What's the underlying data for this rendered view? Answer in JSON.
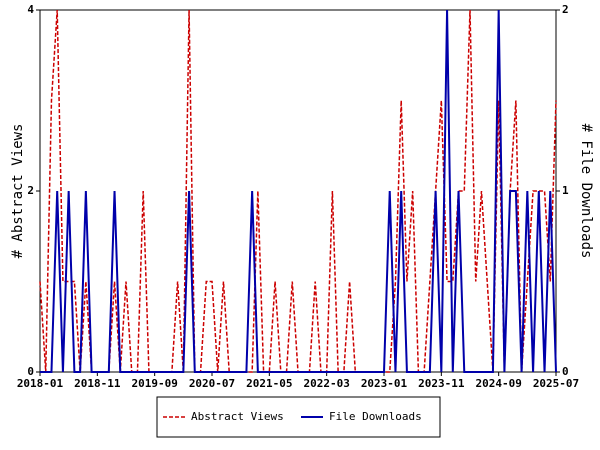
{
  "chart_data": {
    "type": "line",
    "x": [
      "2018-01",
      "2018-02",
      "2018-03",
      "2018-04",
      "2018-05",
      "2018-06",
      "2018-07",
      "2018-08",
      "2018-09",
      "2018-10",
      "2018-11",
      "2018-12",
      "2019-01",
      "2019-02",
      "2019-03",
      "2019-04",
      "2019-05",
      "2019-06",
      "2019-07",
      "2019-08",
      "2019-09",
      "2019-10",
      "2019-11",
      "2019-12",
      "2020-01",
      "2020-02",
      "2020-03",
      "2020-04",
      "2020-05",
      "2020-06",
      "2020-07",
      "2020-08",
      "2020-09",
      "2020-10",
      "2020-11",
      "2020-12",
      "2021-01",
      "2021-02",
      "2021-03",
      "2021-04",
      "2021-05",
      "2021-06",
      "2021-07",
      "2021-08",
      "2021-09",
      "2021-10",
      "2021-11",
      "2021-12",
      "2022-01",
      "2022-02",
      "2022-03",
      "2022-04",
      "2022-05",
      "2022-06",
      "2022-07",
      "2022-08",
      "2022-09",
      "2022-10",
      "2022-11",
      "2022-12",
      "2023-01",
      "2023-02",
      "2023-03",
      "2023-04",
      "2023-05",
      "2023-06",
      "2023-07",
      "2023-08",
      "2023-09",
      "2023-10",
      "2023-11",
      "2023-12",
      "2024-01",
      "2024-02",
      "2024-03",
      "2024-04",
      "2024-05",
      "2024-06",
      "2024-07",
      "2024-08",
      "2024-09",
      "2024-10",
      "2024-11",
      "2024-12",
      "2025-01",
      "2025-02",
      "2025-03",
      "2025-04",
      "2025-05",
      "2025-06",
      "2025-07"
    ],
    "xticks": [
      "2018-01",
      "2018-11",
      "2019-09",
      "2020-07",
      "2021-05",
      "2022-03",
      "2023-01",
      "2023-11",
      "2024-09",
      "2025-07"
    ],
    "ylabel": "# Abstract Views",
    "y2label": "# File Downloads",
    "ylim": [
      0,
      4
    ],
    "yticks": [
      0,
      2,
      4
    ],
    "y2lim": [
      0,
      2
    ],
    "y2ticks": [
      0,
      1,
      2
    ],
    "legend": "bottom",
    "series": [
      {
        "name": "Abstract Views",
        "color": "#cc0000",
        "dash": true,
        "values": [
          1,
          0,
          3,
          4,
          1,
          1,
          1,
          0,
          1,
          0,
          0,
          0,
          0,
          1,
          0,
          1,
          0,
          0,
          2,
          0,
          0,
          0,
          0,
          0,
          1,
          0,
          4,
          0,
          0,
          1,
          1,
          0,
          1,
          0,
          0,
          0,
          0,
          0,
          2,
          0,
          0,
          1,
          0,
          0,
          1,
          0,
          0,
          0,
          1,
          0,
          0,
          2,
          0,
          0,
          1,
          0,
          0,
          0,
          0,
          0,
          0,
          0,
          1,
          3,
          1,
          2,
          0,
          0,
          1,
          2,
          3,
          1,
          1,
          2,
          2,
          4,
          1,
          2,
          1,
          0,
          3,
          0,
          2,
          3,
          0,
          1,
          2,
          2,
          2,
          1,
          3
        ]
      },
      {
        "name": "File Downloads",
        "color": "#0000aa",
        "dash": false,
        "axis": "y2",
        "values": [
          0,
          0,
          0,
          1,
          0,
          1,
          0,
          0,
          1,
          0,
          0,
          0,
          0,
          1,
          0,
          0,
          0,
          0,
          0,
          0,
          0,
          0,
          0,
          0,
          0,
          0,
          1,
          0,
          0,
          0,
          0,
          0,
          0,
          0,
          0,
          0,
          0,
          1,
          0,
          0,
          0,
          0,
          0,
          0,
          0,
          0,
          0,
          0,
          0,
          0,
          0,
          0,
          0,
          0,
          0,
          0,
          0,
          0,
          0,
          0,
          0,
          1,
          0,
          1,
          0,
          0,
          0,
          0,
          0,
          1,
          0,
          2,
          0,
          1,
          0,
          0,
          0,
          0,
          0,
          0,
          2,
          0,
          1,
          1,
          0,
          1,
          0,
          1,
          0,
          1,
          0
        ]
      }
    ]
  }
}
